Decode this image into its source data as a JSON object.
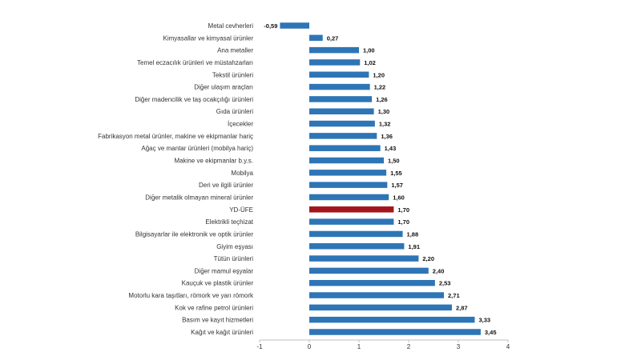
{
  "chart_data": {
    "type": "bar",
    "orientation": "horizontal",
    "title": "",
    "xlabel": "",
    "ylabel": "",
    "xlim": [
      -1,
      4
    ],
    "x_ticks": [
      "-1",
      "0",
      "1",
      "2",
      "3",
      "4"
    ],
    "grid": false,
    "legend": "none",
    "colors": {
      "bar": "#2e75b6",
      "highlight": "#a3151c"
    },
    "highlight_category": "YD-ÜFE",
    "categories": [
      "Metal cevherleri",
      "Kimyasallar ve kimyasal ürünler",
      "Ana metaller",
      "Temel eczacılık ürünleri ve müstahzarları",
      "Tekstil ürünleri",
      "Diğer ulaşım araçları",
      "Diğer madencilik ve taş ocakçılığı ürünleri",
      "Gıda ürünleri",
      "İçecekler",
      "Fabrikasyon metal ürünler, makine ve ekipmanlar hariç",
      "Ağaç ve mantar ürünleri (mobilya hariç)",
      "Makine ve ekipmanlar b.y.s.",
      "Mobilya",
      "Deri ve ilgili ürünler",
      "Diğer metalik olmayan mineral ürünler",
      "YD-ÜFE",
      "Elektrikli teçhizat",
      "Bilgisayarlar ile elektronik ve optik ürünler",
      "Giyim eşyası",
      "Tütün ürünleri",
      "Diğer mamul eşyalar",
      "Kauçuk ve plastik ürünler",
      "Motorlu kara taşıtları, römork ve yarı römork",
      "Kok ve rafine petrol ürünleri",
      "Basım ve kayıt hizmetleri",
      "Kağıt ve kağıt ürünleri"
    ],
    "values": [
      -0.59,
      0.27,
      1.0,
      1.02,
      1.2,
      1.22,
      1.26,
      1.3,
      1.32,
      1.36,
      1.43,
      1.5,
      1.55,
      1.57,
      1.6,
      1.7,
      1.7,
      1.88,
      1.91,
      2.2,
      2.4,
      2.53,
      2.71,
      2.87,
      3.33,
      3.45
    ],
    "value_labels": [
      "-0,59",
      "0,27",
      "1,00",
      "1,02",
      "1,20",
      "1,22",
      "1,26",
      "1,30",
      "1,32",
      "1,36",
      "1,43",
      "1,50",
      "1,55",
      "1,57",
      "1,60",
      "1,70",
      "1,70",
      "1,88",
      "1,91",
      "2,20",
      "2,40",
      "2,53",
      "2,71",
      "2,87",
      "3,33",
      "3,45"
    ]
  }
}
